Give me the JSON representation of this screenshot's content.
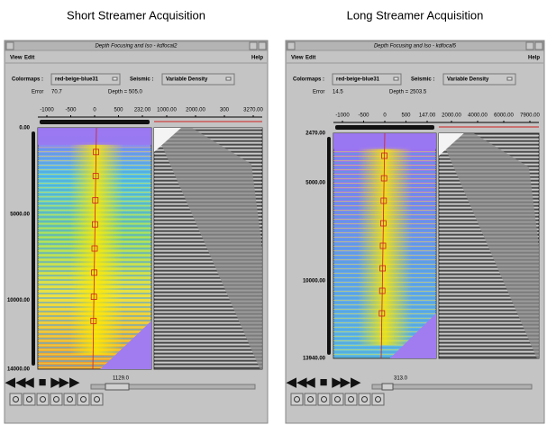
{
  "windows": [
    {
      "caption": "Short Streamer Acquisition",
      "title": "Depth Focusing and Iso - kdfocal2",
      "menu": [
        "View",
        "Edit"
      ],
      "help": "Help",
      "colormap_label": "Colormaps :",
      "colormap": "red-beige-blue31",
      "seismic_label": "Seismic :",
      "seismic": "Variable Density",
      "error_label": "Error",
      "error": "70.7",
      "depth": "Depth = 505.0",
      "offset_ticks": [
        "-1000",
        "-500",
        "0",
        "500",
        "232.00"
      ],
      "trace_ticks": [
        "1000.00",
        "2000.00",
        "300",
        "3270.00"
      ],
      "depth_ticks": [
        "0.00",
        "5000.00",
        "10000.00",
        "14000.00"
      ],
      "slider": "1129.0"
    },
    {
      "caption": "Long Streamer Acquisition",
      "title": "Depth Focusing and Iso - kdfocal5",
      "menu": [
        "View",
        "Edit"
      ],
      "help": "Help",
      "colormap_label": "Colormaps :",
      "colormap": "red-beige-blue31",
      "seismic_label": "Seismic :",
      "seismic": "Variable Density",
      "error_label": "Error",
      "error": "14.5",
      "depth": "Depth = 2503.5",
      "offset_ticks": [
        "-1000",
        "-500",
        "0",
        "500",
        "147.00"
      ],
      "trace_ticks": [
        "2000.00",
        "4000.00",
        "6000.00",
        "7900.00"
      ],
      "depth_ticks": [
        "2470.00",
        "5000.00",
        "10000.00",
        "13940.00"
      ],
      "slider": "313.0"
    }
  ]
}
